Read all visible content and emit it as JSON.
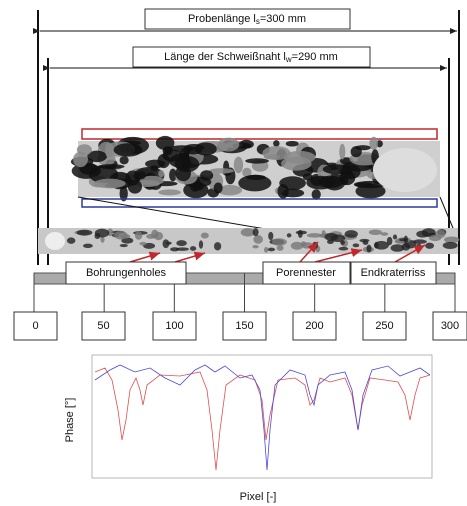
{
  "sample_length": {
    "prefix": "Probenlänge l",
    "sub": "s",
    "suffix": "=300 mm"
  },
  "weld_length": {
    "prefix": "Länge der Schweißnaht l",
    "sub": "w",
    "suffix": "=290 mm"
  },
  "defects": [
    "Bohrungenholes",
    "Porennester",
    "Endkraterriss"
  ],
  "scale": [
    "0",
    "50",
    "100",
    "150",
    "200",
    "250",
    "300"
  ],
  "plot": {
    "y_label": "Phase [°]",
    "x_label": "Pixel [-]"
  }
}
